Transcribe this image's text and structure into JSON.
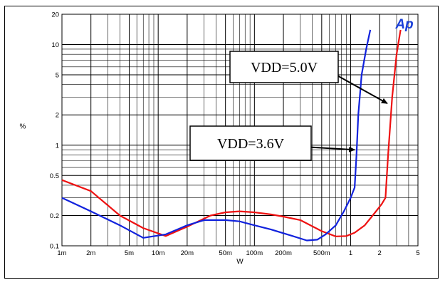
{
  "chart_data": {
    "type": "line",
    "xlabel": "W",
    "ylabel": "%",
    "xscale": "log",
    "yscale": "log",
    "xlim": [
      0.001,
      5
    ],
    "ylim": [
      0.1,
      20
    ],
    "grid": true,
    "x_ticks": [
      {
        "value": 0.001,
        "label": "1m"
      },
      {
        "value": 0.002,
        "label": "2m"
      },
      {
        "value": 0.005,
        "label": "5m"
      },
      {
        "value": 0.01,
        "label": "10m"
      },
      {
        "value": 0.02,
        "label": "20m"
      },
      {
        "value": 0.05,
        "label": "50m"
      },
      {
        "value": 0.1,
        "label": "100m"
      },
      {
        "value": 0.2,
        "label": "200m"
      },
      {
        "value": 0.5,
        "label": "500m"
      },
      {
        "value": 1,
        "label": "1"
      },
      {
        "value": 2,
        "label": "2"
      },
      {
        "value": 5,
        "label": "5"
      }
    ],
    "y_ticks": [
      {
        "value": 0.1,
        "label": "0.1"
      },
      {
        "value": 0.2,
        "label": "0.2"
      },
      {
        "value": 0.5,
        "label": "0.5"
      },
      {
        "value": 1,
        "label": "1"
      },
      {
        "value": 2,
        "label": "2"
      },
      {
        "value": 5,
        "label": "5"
      },
      {
        "value": 10,
        "label": "10"
      },
      {
        "value": 20,
        "label": "20"
      }
    ],
    "logo": "Ap",
    "series": [
      {
        "color": "#ee1111",
        "x": [
          0.001,
          0.002,
          0.004,
          0.007,
          0.012,
          0.02,
          0.035,
          0.05,
          0.07,
          0.1,
          0.15,
          0.2,
          0.3,
          0.5,
          0.7,
          0.9,
          1.1,
          1.4,
          1.8,
          2.1,
          2.3,
          2.45,
          2.7,
          3.0,
          3.3
        ],
        "y": [
          0.45,
          0.35,
          0.2,
          0.15,
          0.125,
          0.155,
          0.2,
          0.215,
          0.22,
          0.215,
          0.205,
          0.195,
          0.18,
          0.14,
          0.124,
          0.125,
          0.135,
          0.16,
          0.215,
          0.26,
          0.3,
          0.8,
          3.0,
          8.0,
          14.0
        ]
      },
      {
        "color": "#1122dd",
        "x": [
          0.001,
          0.002,
          0.004,
          0.007,
          0.012,
          0.02,
          0.03,
          0.05,
          0.07,
          0.1,
          0.15,
          0.25,
          0.35,
          0.45,
          0.55,
          0.7,
          0.85,
          1.0,
          1.1,
          1.15,
          1.2,
          1.3,
          1.45,
          1.6
        ],
        "y": [
          0.3,
          0.22,
          0.16,
          0.12,
          0.13,
          0.16,
          0.18,
          0.18,
          0.175,
          0.16,
          0.145,
          0.125,
          0.113,
          0.115,
          0.13,
          0.16,
          0.22,
          0.3,
          0.38,
          0.8,
          2.0,
          5.0,
          9.0,
          14.0
        ]
      }
    ],
    "annotations": [
      {
        "text": "VDD=5.0V",
        "x": 2.4,
        "y": 2.6
      },
      {
        "text": "VDD=3.6V",
        "x": 1.1,
        "y": 0.9
      }
    ]
  }
}
